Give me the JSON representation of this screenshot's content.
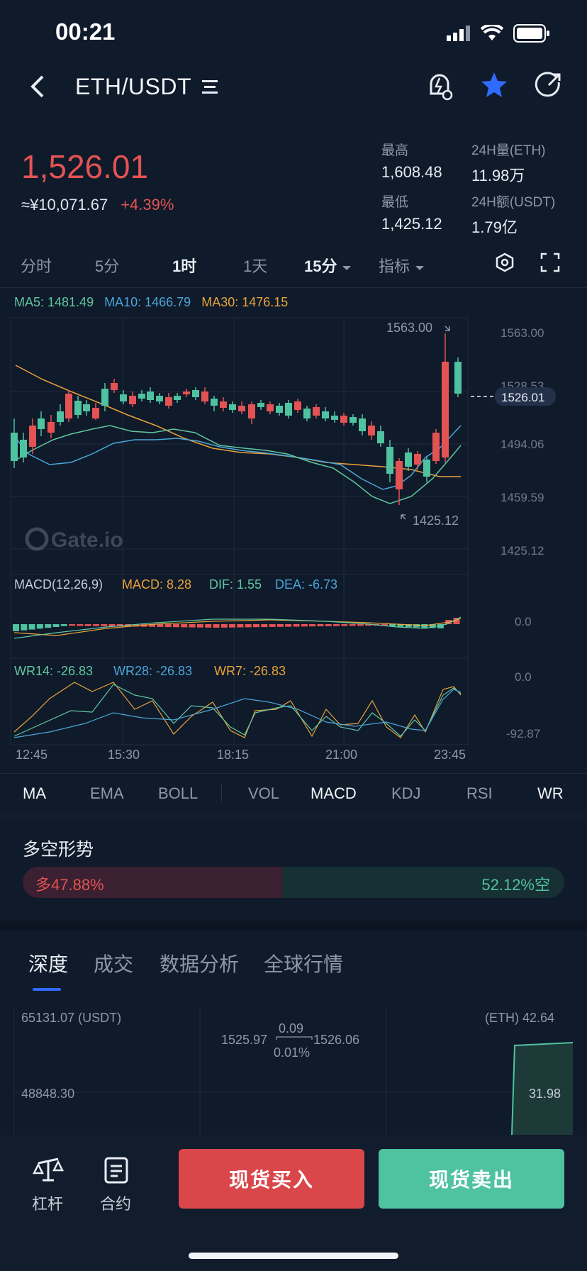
{
  "status_bar": {
    "time": "00:21"
  },
  "header": {
    "pair": "ETH/USDT",
    "menu_icon": "list-icon",
    "icons": [
      "alert-bell-icon",
      "star-icon",
      "share-icon"
    ]
  },
  "ticker": {
    "price": "1,526.01",
    "cny_price": "≈¥10,071.67",
    "change_pct": "+4.39%",
    "high_label": "最高",
    "high": "1,608.48",
    "low_label": "最低",
    "low": "1,425.12",
    "vol_label": "24H量(ETH)",
    "vol": "11.98万",
    "amount_label": "24H额(USDT)",
    "amount": "1.79亿"
  },
  "timeframes": {
    "items": [
      "分时",
      "5分",
      "1时",
      "1天",
      "15分",
      "指标"
    ],
    "active": "1时"
  },
  "ma_legend": {
    "ma5": "MA5: 1481.49",
    "ma10": "MA10: 1466.79",
    "ma30": "MA30: 1476.15"
  },
  "main_axis": [
    "1563.00",
    "1528.53",
    "1494.06",
    "1459.59",
    "1425.12"
  ],
  "current_price_tag": "1526.01",
  "high_marker": "1563.00",
  "low_marker": "1425.12",
  "watermark": "Gate.io",
  "macd_legend": {
    "title": "MACD(12,26,9)",
    "macd": "MACD: 8.28",
    "dif": "DIF: 1.55",
    "dea": "DEA: -6.73"
  },
  "macd_axis": [
    "0.0"
  ],
  "wr_legend": {
    "wr14": "WR14: -26.83",
    "wr28": "WR28: -26.83",
    "wr7": "WR7: -26.83"
  },
  "wr_axis": [
    "0.0",
    "-92.87"
  ],
  "time_axis": [
    "12:45",
    "15:30",
    "18:15",
    "21:00",
    "23:45"
  ],
  "indicator_tabs": [
    "MA",
    "EMA",
    "BOLL",
    "VOL",
    "MACD",
    "KDJ",
    "RSI",
    "WR"
  ],
  "sentiment": {
    "title": "多空形势",
    "long": "多47.88%",
    "short": "52.12%空",
    "long_fraction": 0.4788
  },
  "depth_tabs": [
    "深度",
    "成交",
    "数据分析",
    "全球行情"
  ],
  "depth": {
    "left_top": "65131.07 (USDT)",
    "left_mid": "48848.30",
    "right_top": "(ETH) 42.64",
    "right_mid": "31.98",
    "bid": "1525.97",
    "ask": "1526.06",
    "spread": "0.09",
    "spread_pct": "0.01%"
  },
  "bottom_bar": {
    "lever_label": "杠杆",
    "contract_label": "合约",
    "buy_label": "现货买入",
    "sell_label": "现货卖出"
  },
  "colors": {
    "up": "#4fc2a0",
    "down": "#e35353",
    "bg": "#0f1a2a",
    "ma5": "#61c7a0",
    "ma10": "#4aa6d9",
    "ma30": "#e9a23b",
    "accent": "#2f6bff"
  }
}
